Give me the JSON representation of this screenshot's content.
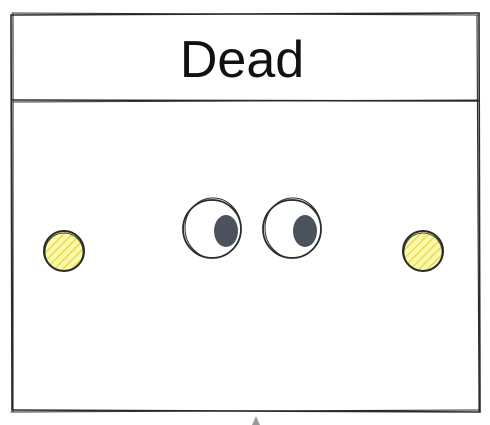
{
  "state": {
    "title": "Dead"
  },
  "colors": {
    "stroke": "#2b2b2b",
    "pupil": "#4a535c",
    "port_fill": "#fdf7a8",
    "port_hatch": "#d6d64a",
    "port_stroke": "#2b2b2b",
    "background": "#ffffff",
    "arrow": "#9a9a9a"
  },
  "icons": {
    "eyes": "eyes-icon",
    "left_port": "connection-port-icon",
    "right_port": "connection-port-icon",
    "bottom_arrow": "arrowhead-up-icon"
  }
}
